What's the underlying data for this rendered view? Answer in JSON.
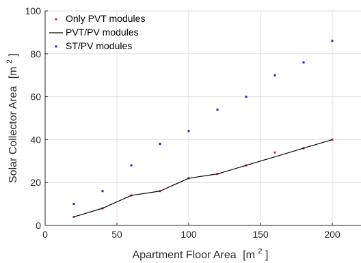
{
  "chart_data": {
    "type": "scatter",
    "xlabel": "Apartment Floor Area",
    "xlabel_unit": "[m",
    "xlabel_sup": "2",
    "xlabel_close": "]",
    "ylabel": "Solar Collector Area",
    "ylabel_unit": "[m",
    "ylabel_sup": "2",
    "ylabel_close": "]",
    "xlim": [
      0,
      220
    ],
    "ylim": [
      0,
      100
    ],
    "xticks": [
      0,
      50,
      100,
      150,
      200
    ],
    "yticks": [
      0,
      20,
      40,
      60,
      80,
      100
    ],
    "grid": true,
    "legend_position": "top-left",
    "series": [
      {
        "name": "Only PVT modules",
        "style": "marker",
        "color": "#d62728",
        "x": [
          20,
          40,
          60,
          80,
          100,
          120,
          140,
          160,
          180,
          200
        ],
        "y": [
          4,
          8,
          14,
          16,
          22,
          24,
          28,
          34,
          36,
          40
        ]
      },
      {
        "name": "PVT/PV modules",
        "style": "line",
        "color": "#000000",
        "x": [
          20,
          40,
          60,
          80,
          100,
          120,
          140,
          160,
          180,
          200
        ],
        "y": [
          4,
          8,
          14,
          16,
          22,
          24,
          28,
          32,
          36,
          40
        ]
      },
      {
        "name": "ST/PV modules",
        "style": "marker",
        "color": "#1f1fcc",
        "x": [
          20,
          40,
          60,
          80,
          100,
          120,
          140,
          160,
          180,
          200
        ],
        "y": [
          10,
          16,
          28,
          38,
          44,
          54,
          60,
          70,
          76,
          86
        ]
      }
    ]
  }
}
